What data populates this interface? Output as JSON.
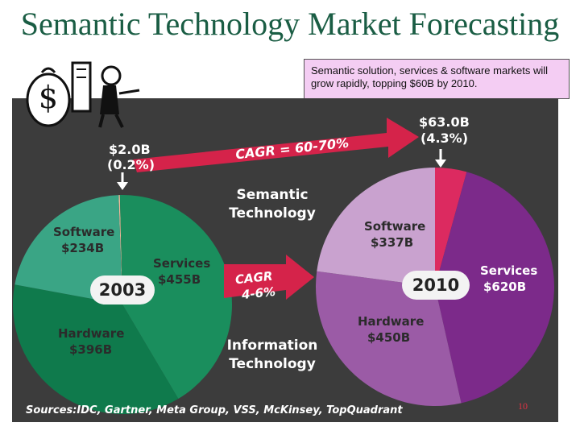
{
  "slide": {
    "title": "Semantic Technology Market Forecasting",
    "callout": "Semantic solution, services & software markets will grow rapidly, topping $60B by 2010.",
    "sources": "Sources:IDC, Gartner, Meta Group, VSS, McKinsey, TopQuadrant",
    "page_number": "10"
  },
  "annotations": {
    "semantic_2003_amount": "$2.0B",
    "semantic_2003_share": "(0.2%)",
    "semantic_2010_amount": "$63.0B",
    "semantic_2010_share": "(4.3%)",
    "cagr_top": "CAGR = 60-70%",
    "cagr_mid_line1": "CAGR",
    "cagr_mid_line2": "4-6%",
    "semantic_tech_line1": "Semantic",
    "semantic_tech_line2": "Technology",
    "info_tech_line1": "Information",
    "info_tech_line2": "Technology"
  },
  "colors": {
    "title": "#1a5d44",
    "panel": "#3c3c3c",
    "callout_bg": "#f4cdf3",
    "red_arrow": "#d5234a",
    "pie2003_software": "#3aa585",
    "pie2003_services": "#1a8e5d",
    "pie2003_hardware": "#0f7a4c",
    "pie2003_semantic": "#f2b89a",
    "pie2010_software": "#c9a2cf",
    "pie2010_services": "#7c2a8a",
    "pie2010_hardware": "#9b5ba6",
    "pie2010_semantic": "#dc2a60"
  },
  "chart_data": [
    {
      "type": "pie",
      "title": "2003",
      "categories": [
        "Semantic",
        "Services",
        "Hardware",
        "Software"
      ],
      "labels": [
        "$2.0B",
        "Services\n$455B",
        "Hardware\n$396B",
        "Software\n$234B"
      ],
      "values": [
        2.0,
        455,
        396,
        234
      ],
      "label_text": {
        "software_name": "Software",
        "software_value": "$234B",
        "services_name": "Services",
        "services_value": "$455B",
        "hardware_name": "Hardware",
        "hardware_value": "$396B"
      }
    },
    {
      "type": "pie",
      "title": "2010",
      "categories": [
        "Semantic",
        "Services",
        "Hardware",
        "Software"
      ],
      "labels": [
        "$63.0B",
        "Services\n$620B",
        "Hardware\n$450B",
        "Software\n$337B"
      ],
      "values": [
        63.0,
        620,
        450,
        337
      ],
      "label_text": {
        "software_name": "Software",
        "software_value": "$337B",
        "services_name": "Services",
        "services_value": "$620B",
        "hardware_name": "Hardware",
        "hardware_value": "$450B"
      }
    }
  ]
}
